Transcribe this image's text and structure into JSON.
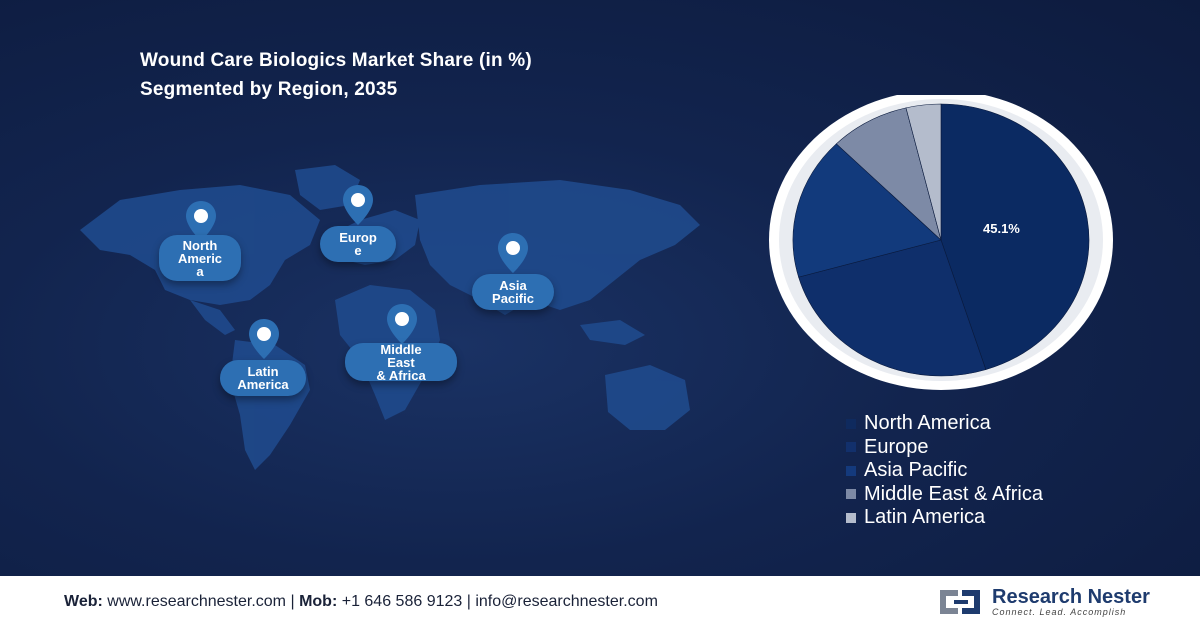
{
  "title_line1": "Wound Care Biologics Market Share (in %)",
  "title_line2": "Segmented by Region, 2035",
  "regions": {
    "north_america": "North America",
    "europe": "Europe",
    "asia_pacific": "Asia Pacific",
    "middle_east_africa": "Middle East & Africa",
    "latin_america": "Latin America"
  },
  "map_labels": {
    "north_america": [
      "North",
      "Americ",
      "a"
    ],
    "europe": [
      "Europ",
      "e"
    ],
    "asia_pacific": [
      "Asia",
      "Pacific"
    ],
    "middle_east_africa": [
      "Middle",
      "East",
      "& Africa"
    ],
    "latin_america": [
      "Latin",
      "America"
    ]
  },
  "chart_data": {
    "type": "pie",
    "title": "Wound Care Biologics Market Share (in %)",
    "subtitle": "Segmented by Region, 2035",
    "categories": [
      "North America",
      "Europe",
      "Asia Pacific",
      "Middle East & Africa",
      "Latin America"
    ],
    "values": [
      45.1,
      25.5,
      16.9,
      8.7,
      3.8
    ],
    "colors": [
      "#0b2a62",
      "#0f2f6b",
      "#123a7c",
      "#7d8aa6",
      "#b4bccc"
    ],
    "data_labels": [
      "45.1%",
      "",
      "",
      "",
      ""
    ],
    "legend_placement": "bottom-right"
  },
  "footer": {
    "web_label": "Web:",
    "web_value": "www.researchnester.com",
    "mob_label": "Mob:",
    "mob_value": "+1 646 586 9123",
    "email_value": "info@researchnester.com",
    "separator": "|"
  },
  "logo": {
    "name": "Research Nester",
    "tagline": "Connect. Lead. Accomplish"
  }
}
